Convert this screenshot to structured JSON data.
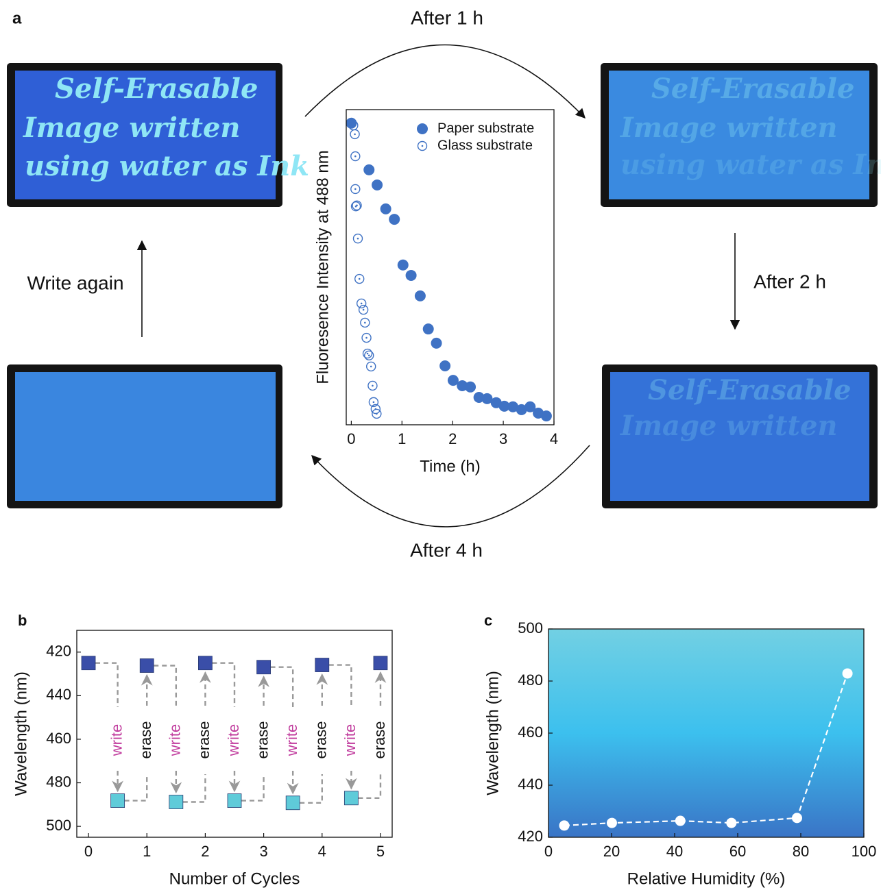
{
  "panel_labels": [
    "a",
    "b",
    "c"
  ],
  "cycle_labels": {
    "after_1h": "After 1 h",
    "after_2h": "After 2 h",
    "after_4h": "After 4 h",
    "write_again": "Write again"
  },
  "photo_text": [
    "Self-Erasable",
    "Image written",
    "using water as Ink"
  ],
  "chart_data": [
    {
      "type": "scatter",
      "x_label": "Time (h)",
      "y_label": "Fluoresence Intensity at 488 nm",
      "xlim": [
        -0.1,
        4
      ],
      "xticks": [
        0,
        1,
        2,
        3,
        4
      ],
      "ylim": [
        0,
        1
      ],
      "legend": "upper right",
      "series": [
        {
          "name": "Paper substrate",
          "color": "#3f72c4",
          "marker": "filled",
          "x": [
            0,
            0.35,
            0.51,
            0.68,
            0.85,
            1.02,
            1.18,
            1.36,
            1.52,
            1.68,
            1.85,
            2.01,
            2.19,
            2.35,
            2.52,
            2.68,
            2.86,
            3.02,
            3.19,
            3.36,
            3.53,
            3.69,
            3.85
          ],
          "values": [
            0.957,
            0.809,
            0.761,
            0.685,
            0.652,
            0.507,
            0.474,
            0.409,
            0.304,
            0.259,
            0.187,
            0.141,
            0.124,
            0.12,
            0.087,
            0.083,
            0.07,
            0.059,
            0.057,
            0.048,
            0.057,
            0.037,
            0.028
          ]
        },
        {
          "name": "Glass substrate",
          "color": "#3f72c4",
          "marker": "open-dot",
          "x": [
            0.04,
            0.07,
            0.08,
            0.08,
            0.11,
            0.09,
            0.13,
            0.16,
            0.2,
            0.24,
            0.27,
            0.3,
            0.32,
            0.35,
            0.39,
            0.42,
            0.44,
            0.48,
            0.5
          ],
          "values": [
            0.95,
            0.922,
            0.852,
            0.748,
            0.696,
            0.693,
            0.591,
            0.463,
            0.385,
            0.365,
            0.324,
            0.276,
            0.226,
            0.22,
            0.185,
            0.124,
            0.072,
            0.05,
            0.035
          ]
        }
      ]
    },
    {
      "type": "scatter",
      "x_label": "Number of Cycles",
      "y_label": "Wavelength (nm)",
      "xlim": [
        -0.2,
        5.2
      ],
      "xticks": [
        0,
        1,
        2,
        3,
        4,
        5
      ],
      "ylim": [
        410,
        505
      ],
      "yticks": [
        420,
        440,
        460,
        480,
        500
      ],
      "y_inverted": true,
      "write_label": "write",
      "erase_label": "erase",
      "write_color": "#c13d9e",
      "series": [
        {
          "color": "#3a4ea8",
          "marker": "square",
          "x": [
            0,
            1,
            2,
            3,
            4,
            5
          ],
          "values": [
            425,
            426.2,
            425,
            426.9,
            425.9,
            425
          ]
        },
        {
          "color": "#5fcbd9",
          "marker": "square",
          "x": [
            0.5,
            1.5,
            2.5,
            3.5,
            4.5
          ],
          "values": [
            488.2,
            488.8,
            488.2,
            489.2,
            487
          ]
        }
      ]
    },
    {
      "type": "line",
      "x_label": "Relative Humidity (%)",
      "y_label": "Wavelength (nm)",
      "xlim": [
        0,
        100
      ],
      "xticks": [
        0,
        20,
        40,
        60,
        80,
        100
      ],
      "ylim": [
        420,
        500
      ],
      "yticks": [
        420,
        440,
        460,
        480,
        500
      ],
      "background": [
        "#72d0e3",
        "#3cc0ee",
        "#3a74c6"
      ],
      "color": "#ffffff",
      "x": [
        5,
        20.1,
        41.8,
        58,
        78.8,
        94.8
      ],
      "values": [
        424.5,
        425.5,
        426.3,
        425.5,
        427.4,
        482.9
      ]
    }
  ]
}
